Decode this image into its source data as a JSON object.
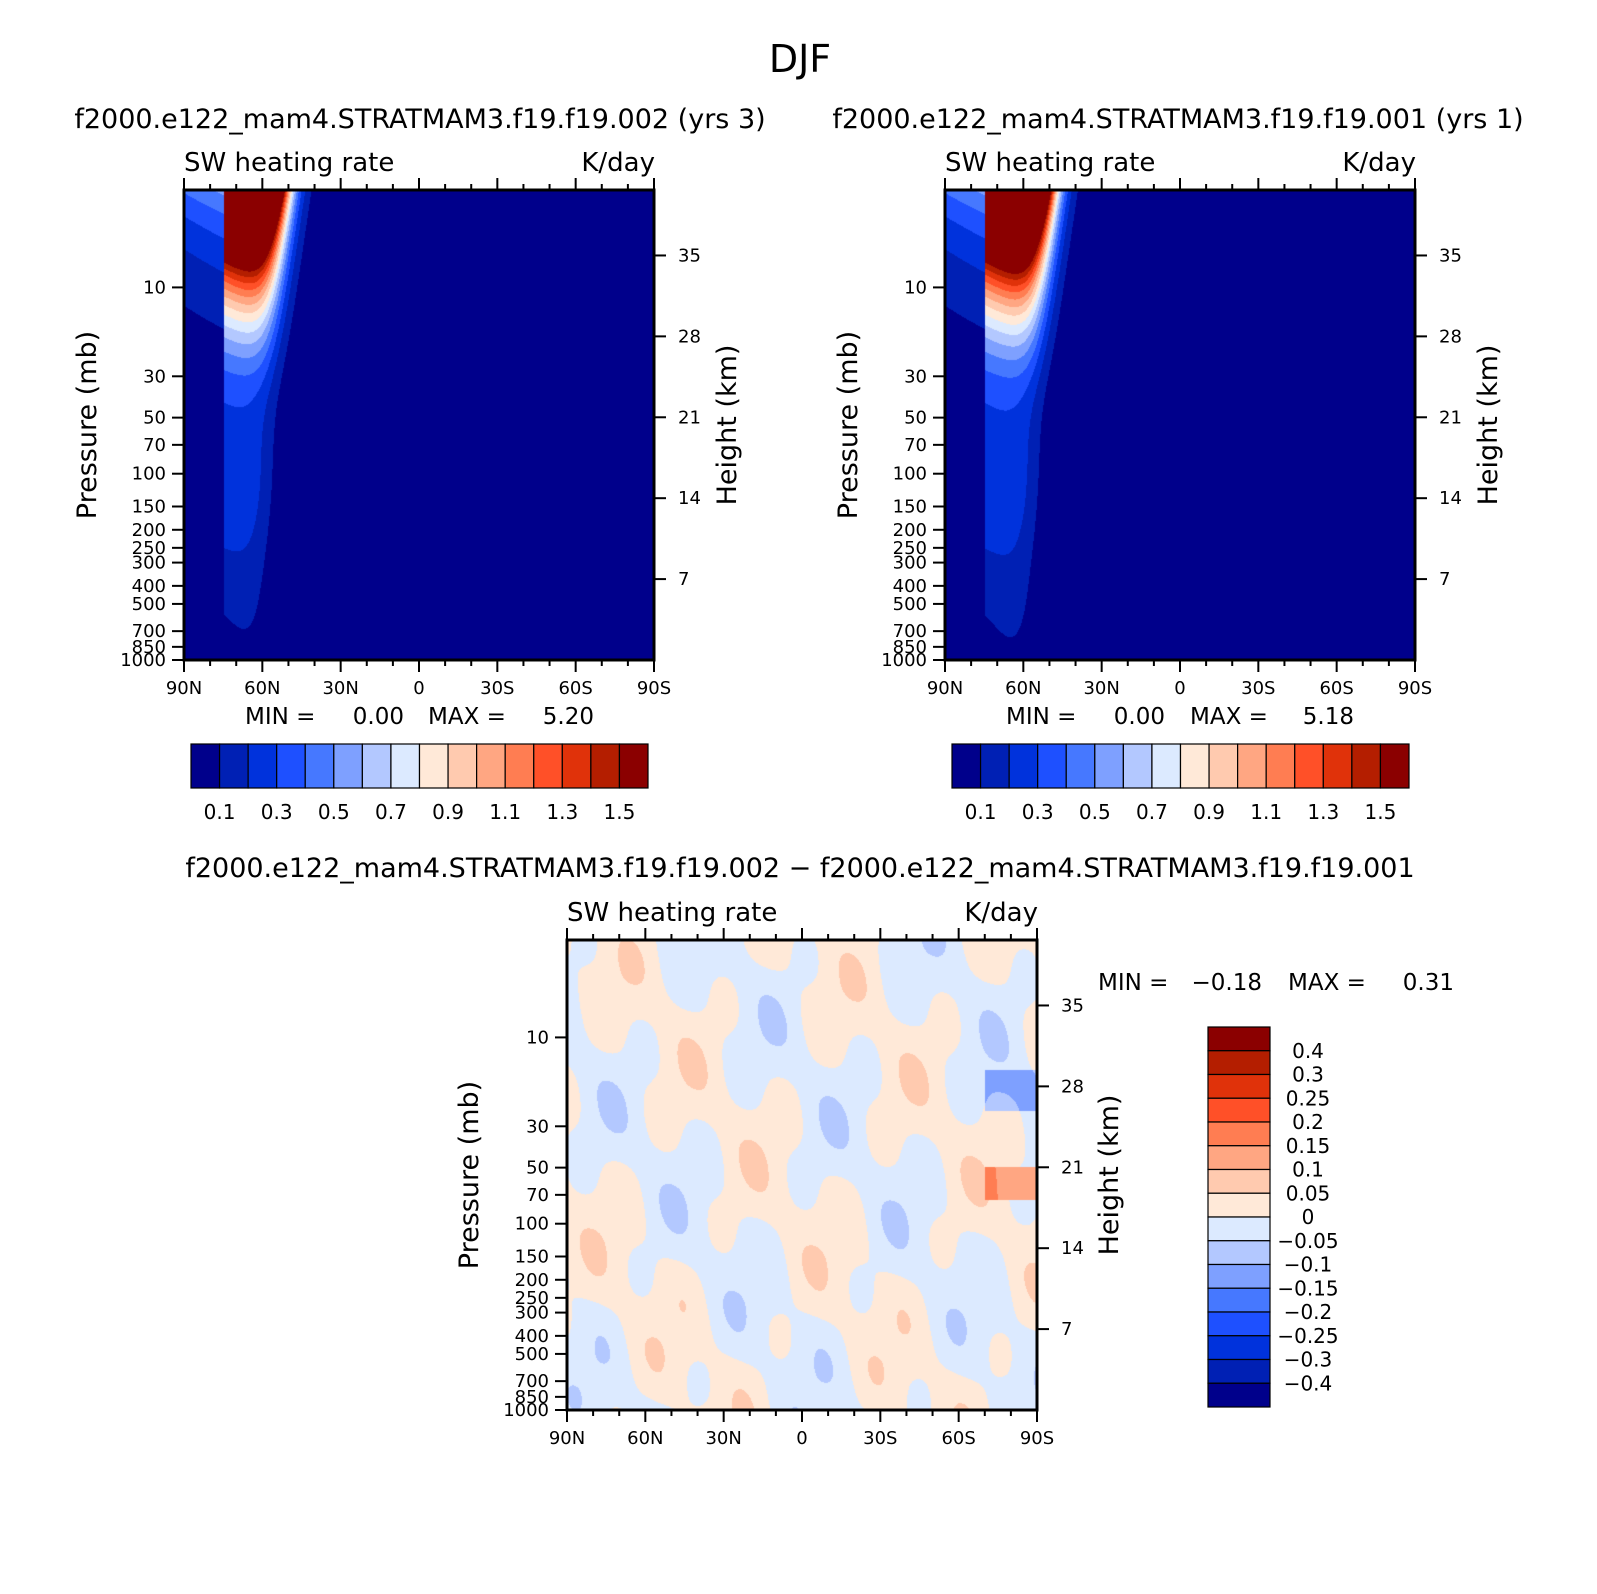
{
  "title": "DJF",
  "colors": {
    "palette": [
      "#00008b",
      "#0020b4",
      "#0032dc",
      "#1e50ff",
      "#4678ff",
      "#7ea0ff",
      "#b3c8ff",
      "#dceaff",
      "#ffe9d8",
      "#ffcaaf",
      "#ffa682",
      "#ff7d52",
      "#ff5028",
      "#e0320a",
      "#b41e00",
      "#8b0000"
    ]
  },
  "panels": [
    {
      "case_title": "f2000.e122_mam4.STRATMAM3.f19.f19.002 (yrs 3)",
      "left_label": "SW heating rate",
      "right_label": "K/day",
      "min_label": "MIN =",
      "min_value": "0.00",
      "max_label": "MAX =",
      "max_value": "5.20",
      "colorbar_labels": [
        "0.1",
        "0.3",
        "0.5",
        "0.7",
        "0.9",
        "1.1",
        "1.3",
        "1.5"
      ]
    },
    {
      "case_title": "f2000.e122_mam4.STRATMAM3.f19.f19.001 (yrs 1)",
      "left_label": "SW heating rate",
      "right_label": "K/day",
      "min_label": "MIN =",
      "min_value": "0.00",
      "max_label": "MAX =",
      "max_value": "5.18",
      "colorbar_labels": [
        "0.1",
        "0.3",
        "0.5",
        "0.7",
        "0.9",
        "1.1",
        "1.3",
        "1.5"
      ]
    },
    {
      "case_title": "f2000.e122_mam4.STRATMAM3.f19.f19.002 − f2000.e122_mam4.STRATMAM3.f19.f19.001",
      "left_label": "SW heating rate",
      "right_label": "K/day",
      "min_label": "MIN =",
      "min_value": "−0.18",
      "max_label": "MAX =",
      "max_value": "0.31",
      "colorbar_labels": [
        "0.4",
        "0.3",
        "0.25",
        "0.2",
        "0.15",
        "0.1",
        "0.05",
        "0",
        "−0.05",
        "−0.1",
        "−0.15",
        "−0.2",
        "−0.25",
        "−0.3",
        "−0.4"
      ]
    }
  ],
  "chart_data": [
    {
      "type": "heatmap",
      "title": "f2000.e122_mam4.STRATMAM3.f19.f19.002 (yrs 3)",
      "variable": "SW heating rate",
      "units": "K/day",
      "xlabel": "",
      "ylabel": "Pressure (mb)",
      "y2label": "Height (km)",
      "x_ticks": [
        "90N",
        "60N",
        "30N",
        "0",
        "30S",
        "60S",
        "90S"
      ],
      "y_ticks": [
        "10",
        "30",
        "50",
        "70",
        "100",
        "150",
        "200",
        "250",
        "300",
        "400",
        "500",
        "700",
        "850",
        "1000"
      ],
      "y_ticks_values": [
        10,
        30,
        50,
        70,
        100,
        150,
        200,
        250,
        300,
        400,
        500,
        700,
        850,
        1000
      ],
      "y2_ticks": [
        "35",
        "28",
        "21",
        "14",
        "7"
      ],
      "y2_ticks_values": [
        35,
        28,
        21,
        14,
        7
      ],
      "ylim": [
        3,
        1000
      ],
      "y_scale": "log",
      "contour_levels": [
        0.1,
        0.2,
        0.3,
        0.4,
        0.5,
        0.6,
        0.7,
        0.8,
        0.9,
        1.0,
        1.1,
        1.2,
        1.3,
        1.4,
        1.5
      ],
      "min": 0.0,
      "max": 5.2
    },
    {
      "type": "heatmap",
      "title": "f2000.e122_mam4.STRATMAM3.f19.f19.001 (yrs 1)",
      "variable": "SW heating rate",
      "units": "K/day",
      "xlabel": "",
      "ylabel": "Pressure (mb)",
      "y2label": "Height (km)",
      "x_ticks": [
        "90N",
        "60N",
        "30N",
        "0",
        "30S",
        "60S",
        "90S"
      ],
      "y_ticks": [
        "10",
        "30",
        "50",
        "70",
        "100",
        "150",
        "200",
        "250",
        "300",
        "400",
        "500",
        "700",
        "850",
        "1000"
      ],
      "y_ticks_values": [
        10,
        30,
        50,
        70,
        100,
        150,
        200,
        250,
        300,
        400,
        500,
        700,
        850,
        1000
      ],
      "y2_ticks": [
        "35",
        "28",
        "21",
        "14",
        "7"
      ],
      "y2_ticks_values": [
        35,
        28,
        21,
        14,
        7
      ],
      "ylim": [
        3,
        1000
      ],
      "y_scale": "log",
      "contour_levels": [
        0.1,
        0.2,
        0.3,
        0.4,
        0.5,
        0.6,
        0.7,
        0.8,
        0.9,
        1.0,
        1.1,
        1.2,
        1.3,
        1.4,
        1.5
      ],
      "min": 0.0,
      "max": 5.18
    },
    {
      "type": "heatmap",
      "title": "f2000.e122_mam4.STRATMAM3.f19.f19.002 − f2000.e122_mam4.STRATMAM3.f19.f19.001",
      "variable": "SW heating rate",
      "units": "K/day",
      "xlabel": "",
      "ylabel": "Pressure (mb)",
      "y2label": "Height (km)",
      "x_ticks": [
        "90N",
        "60N",
        "30N",
        "0",
        "30S",
        "60S",
        "90S"
      ],
      "y_ticks": [
        "10",
        "30",
        "50",
        "70",
        "100",
        "150",
        "200",
        "250",
        "300",
        "400",
        "500",
        "700",
        "850",
        "1000"
      ],
      "y_ticks_values": [
        10,
        30,
        50,
        70,
        100,
        150,
        200,
        250,
        300,
        400,
        500,
        700,
        850,
        1000
      ],
      "y2_ticks": [
        "35",
        "28",
        "21",
        "14",
        "7"
      ],
      "y2_ticks_values": [
        35,
        28,
        21,
        14,
        7
      ],
      "ylim": [
        3,
        1000
      ],
      "y_scale": "log",
      "contour_levels": [
        -0.4,
        -0.3,
        -0.25,
        -0.2,
        -0.15,
        -0.1,
        -0.05,
        0,
        0.05,
        0.1,
        0.15,
        0.2,
        0.25,
        0.3,
        0.4
      ],
      "min": -0.18,
      "max": 0.31
    }
  ]
}
